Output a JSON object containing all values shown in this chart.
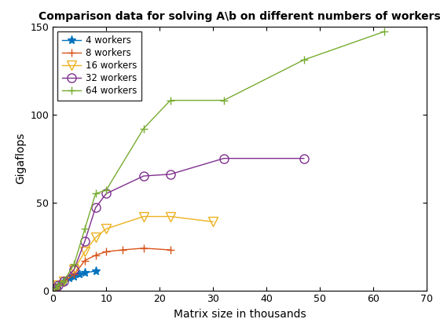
{
  "title": "Comparison data for solving A\\b on different numbers of workers",
  "xlabel": "Matrix size in thousands",
  "ylabel": "Gigaflops",
  "xlim": [
    0,
    70
  ],
  "ylim": [
    0,
    150
  ],
  "series": [
    {
      "label": "4 workers",
      "color": "#0072BD",
      "marker": "*",
      "markersize": 8,
      "linewidth": 1.0,
      "x": [
        0.5,
        1,
        2,
        3,
        4,
        5,
        6,
        8
      ],
      "y": [
        1,
        3,
        5,
        7,
        8,
        9,
        10,
        11
      ]
    },
    {
      "label": "8 workers",
      "color": "#D95319",
      "marker": "+",
      "markersize": 7,
      "linewidth": 1.0,
      "x": [
        0.5,
        1,
        2,
        4,
        6,
        8,
        10,
        13,
        17,
        22
      ],
      "y": [
        1,
        3,
        5,
        9,
        17,
        20,
        22,
        23,
        24,
        23
      ]
    },
    {
      "label": "16 workers",
      "color": "#EDB120",
      "marker": "v",
      "markersize": 8,
      "linewidth": 1.0,
      "x": [
        0.5,
        1,
        2,
        4,
        6,
        8,
        10,
        17,
        22,
        30
      ],
      "y": [
        1,
        3,
        5,
        12,
        22,
        30,
        35,
        42,
        42,
        39
      ]
    },
    {
      "label": "32 workers",
      "color": "#7E2F8E",
      "marker": "o",
      "markersize": 8,
      "linewidth": 1.0,
      "x": [
        0.5,
        1,
        2,
        4,
        6,
        8,
        10,
        17,
        22,
        32,
        47
      ],
      "y": [
        1,
        3,
        5,
        12,
        28,
        47,
        55,
        65,
        66,
        75,
        75
      ]
    },
    {
      "label": "64 workers",
      "color": "#77AC30",
      "marker": "+",
      "markersize": 7,
      "linewidth": 1.0,
      "x": [
        0.5,
        1,
        2,
        4,
        6,
        8,
        10,
        17,
        22,
        32,
        47,
        62
      ],
      "y": [
        1,
        3,
        5,
        15,
        35,
        55,
        57,
        92,
        108,
        108,
        131,
        147
      ]
    }
  ],
  "xticks": [
    0,
    10,
    20,
    30,
    40,
    50,
    60,
    70
  ],
  "yticks": [
    0,
    50,
    100,
    150
  ],
  "bg_color": "#ffffff",
  "legend_loc": "upper left"
}
